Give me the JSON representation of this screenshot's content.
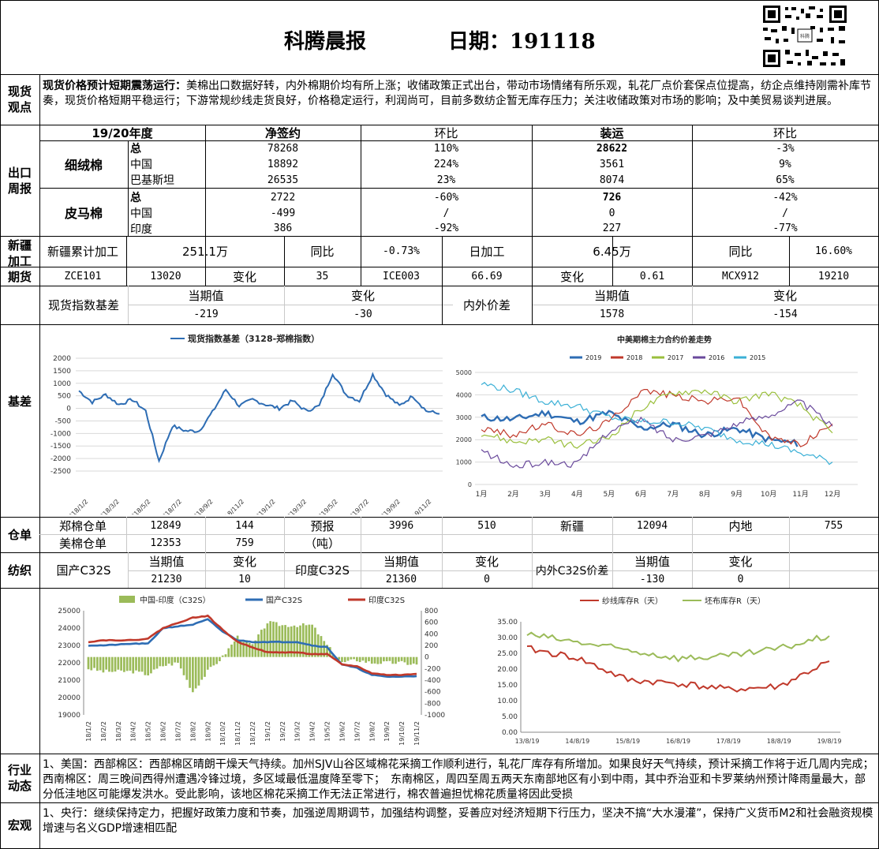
{
  "header": {
    "title": "科腾晨报",
    "date_label": "日期：191118"
  },
  "labels": {
    "spot": "现货\n观点",
    "export": "出口\n周报",
    "xinjiang": "新疆\n加工\n期货",
    "basis": "基差",
    "warehouse": "仓单",
    "textile": "纺织",
    "industry": "行业\n动态",
    "macro": "宏观"
  },
  "spot_view": {
    "headline": "现货价格预计短期震荡运行：",
    "body": "美棉出口数据好转，内外棉期价均有所上涨；收储政策正式出台，带动市场情绪有所乐观，轧花厂点价套保点位提高，纺企点维持刚需补库节奏，现货价格短期平稳运行；下游常规纱线走货良好，价格稳定运行，利润尚可，目前多数纺企暂无库存压力；关注收储政策对市场的影响；及中美贸易谈判进展。"
  },
  "export_table": {
    "headers": [
      "19/20年度",
      "净签约",
      "环比",
      "装运",
      "环比"
    ],
    "groups": [
      {
        "name": "细绒棉",
        "rows": [
          [
            "总",
            "78268",
            "110%",
            "28622",
            "-3%"
          ],
          [
            "中国",
            "18892",
            "224%",
            "3561",
            "9%"
          ],
          [
            "巴基斯坦",
            "26535",
            "23%",
            "8074",
            "65%"
          ]
        ]
      },
      {
        "name": "皮马棉",
        "rows": [
          [
            "总",
            "2722",
            "-60%",
            "726",
            "-42%"
          ],
          [
            "中国",
            "-499",
            "/",
            "0",
            "/"
          ],
          [
            "印度",
            "386",
            "-92%",
            "227",
            "-77%"
          ]
        ]
      }
    ]
  },
  "xinjiang": {
    "row1": [
      "新疆累计加工",
      "251.1万",
      "同比",
      "-0.73%",
      "日加工",
      "6.45万",
      "同比",
      "16.60%"
    ],
    "row2": [
      "ZCE101",
      "13020",
      "变化",
      "35",
      "ICE003",
      "66.69",
      "变化",
      "0.61",
      "MCX912",
      "19210"
    ]
  },
  "basis": {
    "spot_label": "现货指数基差",
    "cur": "当期值",
    "chg": "变化",
    "spot_cur": "-219",
    "spot_chg": "-30",
    "diff_label": "内外价差",
    "diff_cur": "1578",
    "diff_chg": "-154"
  },
  "warehouse": {
    "row1": [
      "郑棉仓单",
      "12849",
      "144",
      "预报",
      "3996",
      "510",
      "新疆",
      "12094",
      "内地",
      "755"
    ],
    "row2": [
      "美棉仓单",
      "12353",
      "759",
      "（吨）"
    ]
  },
  "textile": {
    "h": [
      "国产C32S",
      "当期值",
      "变化",
      "印度C32S",
      "当期值",
      "变化",
      "内外C32S价差",
      "当期值",
      "变化"
    ],
    "v": [
      "21230",
      "10",
      "21360",
      "0",
      "-130",
      "0"
    ]
  },
  "industry_text": "1、美国：西部棉区：西部棉区晴朗干燥天气持续。加州SJV山谷区域棉花采摘工作顺利进行，轧花厂库存有所增加。如果良好天气持续，预计采摘工作将于近几周内完成；西南棉区：周三晚间西得州遭遇冷锋过境，多区域最低温度降至零下；　东南棉区，周四至周五两天东南部地区有小到中雨，其中乔治亚和卡罗莱纳州预计降雨量最大，部分低洼地区可能爆发洪水。受此影响，该地区棉花采摘工作无法正常进行，棉农普遍担忧棉花质量将因此受损",
  "macro_text": "1、央行：继续保持定力，把握好政策力度和节奏，加强逆周期调节，加强结构调整，妥善应对经济短期下行压力，坚决不搞“大水漫灌”，保持广义货币M2和社会融资规模增速与名义GDP增速相匹配",
  "chart_data": [
    {
      "type": "line",
      "title": "",
      "xlabel": "",
      "ylabel": "",
      "series": [
        {
          "name": "现货指数基差（3128-郑棉指数）",
          "color": "#2e6db4",
          "x": [
            "2018/1/2",
            "2018/2/1",
            "2018/3/2",
            "2018/4/1",
            "2018/5/2",
            "2018/5/25",
            "2018/6/15",
            "2018/7/2",
            "2018/8/1",
            "2018/9/2",
            "2018/10/1",
            "2018/11/2",
            "2018/12/1",
            "2019/1/2",
            "2019/2/1",
            "2019/3/2",
            "2019/4/1",
            "2019/4/20",
            "2019/5/2",
            "2019/6/1",
            "2019/6/20",
            "2019/7/2",
            "2019/8/1",
            "2019/8/20",
            "2019/9/2",
            "2019/10/1",
            "2019/11/2",
            "2019/11/18"
          ],
          "values": [
            700,
            250,
            550,
            150,
            350,
            -100,
            -2100,
            -700,
            -900,
            -900,
            -150,
            750,
            100,
            350,
            150,
            0,
            300,
            -100,
            100,
            1400,
            550,
            300,
            1350,
            550,
            100,
            500,
            -100,
            -219
          ]
        }
      ],
      "xticks": [
        "2018/1/2",
        "2018/3/2",
        "2018/5/2",
        "2018/7/2",
        "2018/9/2",
        "2018/11/2",
        "2019/1/2",
        "2019/3/2",
        "2019/5/2",
        "2019/7/2",
        "2019/9/2",
        "2019/11/2"
      ],
      "ylim": [
        -2500,
        2000
      ],
      "yticks": [
        2000,
        1500,
        1000,
        500,
        0,
        -500,
        -1000,
        -1500,
        -2000,
        -2500
      ],
      "grid": true,
      "legend": "top"
    },
    {
      "type": "line",
      "title": "中美期棉主力合约价差走势",
      "categories": [
        "1月",
        "2月",
        "3月",
        "4月",
        "5月",
        "6月",
        "7月",
        "8月",
        "9月",
        "10月",
        "11月",
        "12月"
      ],
      "ylim": [
        0,
        5000
      ],
      "yticks": [
        5000,
        4000,
        3000,
        2000,
        1000,
        0
      ],
      "grid": true,
      "legend": "top",
      "series": [
        {
          "name": "2019",
          "color": "#2e6db4",
          "values": [
            3000,
            2900,
            3200,
            2800,
            3200,
            2500,
            2700,
            2200,
            2500,
            2000,
            1800,
            null
          ]
        },
        {
          "name": "2018",
          "color": "#c0392b",
          "values": [
            2500,
            2200,
            2700,
            2200,
            2800,
            4200,
            4000,
            3700,
            3900,
            2100,
            1800,
            2700
          ]
        },
        {
          "name": "2017",
          "color": "#9abf3c",
          "values": [
            2300,
            1900,
            2000,
            1700,
            2100,
            3400,
            4100,
            4200,
            3700,
            4100,
            3500,
            2300
          ]
        },
        {
          "name": "2016",
          "color": "#6a4a9c",
          "values": [
            1500,
            800,
            1000,
            900,
            2400,
            2900,
            2000,
            2200,
            2700,
            3100,
            3700,
            2600
          ]
        },
        {
          "name": "2015",
          "color": "#3bb0d6",
          "values": [
            4500,
            4200,
            3700,
            3500,
            3000,
            2800,
            2800,
            2500,
            2000,
            1800,
            1400,
            1000
          ]
        }
      ]
    },
    {
      "type": "line",
      "title": "",
      "x": [
        "18/1/2",
        "18/2/2",
        "18/3/2",
        "18/4/2",
        "18/5/2",
        "18/6/2",
        "18/7/2",
        "18/8/2",
        "18/9/2",
        "18/10/2",
        "18/11/2",
        "18/12/2",
        "19/1/2",
        "19/2/2",
        "19/3/2",
        "19/4/2",
        "19/5/2",
        "19/6/2",
        "19/7/2",
        "19/8/2",
        "19/9/2",
        "19/10/2",
        "19/11/2"
      ],
      "ylim_left": [
        19000,
        25000
      ],
      "ylim_right": [
        -1000,
        800
      ],
      "yticks_left": [
        25000,
        24000,
        23000,
        22000,
        21000,
        20000,
        19000
      ],
      "yticks_right": [
        800,
        600,
        400,
        200,
        0,
        -200,
        -400,
        -600,
        -800,
        -1000
      ],
      "legend": "top",
      "series": [
        {
          "name": "中国-印度（C32S）",
          "type": "bar",
          "axis": "right",
          "color": "#9bbb59",
          "values": [
            -200,
            -250,
            -250,
            -250,
            -300,
            -150,
            -100,
            -600,
            -250,
            0,
            350,
            200,
            600,
            550,
            550,
            550,
            200,
            -100,
            -50,
            -100,
            -100,
            -100,
            -130
          ]
        },
        {
          "name": "国产C32S",
          "type": "line",
          "axis": "left",
          "color": "#2e6db4",
          "values": [
            23000,
            23000,
            23050,
            23100,
            23100,
            24000,
            24100,
            24200,
            24500,
            23800,
            23300,
            23200,
            23200,
            23200,
            23200,
            23000,
            22900,
            21900,
            21700,
            21300,
            21200,
            21200,
            21230
          ]
        },
        {
          "name": "印度C32S",
          "type": "line",
          "axis": "left",
          "color": "#c0392b",
          "values": [
            23200,
            23300,
            23300,
            23300,
            23400,
            24000,
            24300,
            24600,
            24700,
            23900,
            23200,
            22900,
            22600,
            22600,
            22600,
            22500,
            22500,
            21900,
            21800,
            21400,
            21300,
            21300,
            21360
          ]
        }
      ]
    },
    {
      "type": "line",
      "title": "",
      "x": [
        "13/8/19",
        "14/8/19",
        "15/8/19",
        "16/8/19",
        "17/8/19",
        "18/8/19",
        "19/8/19"
      ],
      "ylim": [
        0,
        35
      ],
      "yticks": [
        35,
        30,
        25,
        20,
        15,
        10,
        5,
        0
      ],
      "legend": "top",
      "series": [
        {
          "name": "纱线库存R（天）",
          "color": "#c0392b",
          "values": [
            26.5,
            23.5,
            16.5,
            15.5,
            13.5,
            14.5,
            22.5
          ]
        },
        {
          "name": "坯布库存R（天）",
          "color": "#9bbb59",
          "values": [
            31,
            28.5,
            26,
            23.5,
            24,
            26.5,
            30.5
          ]
        }
      ]
    }
  ]
}
